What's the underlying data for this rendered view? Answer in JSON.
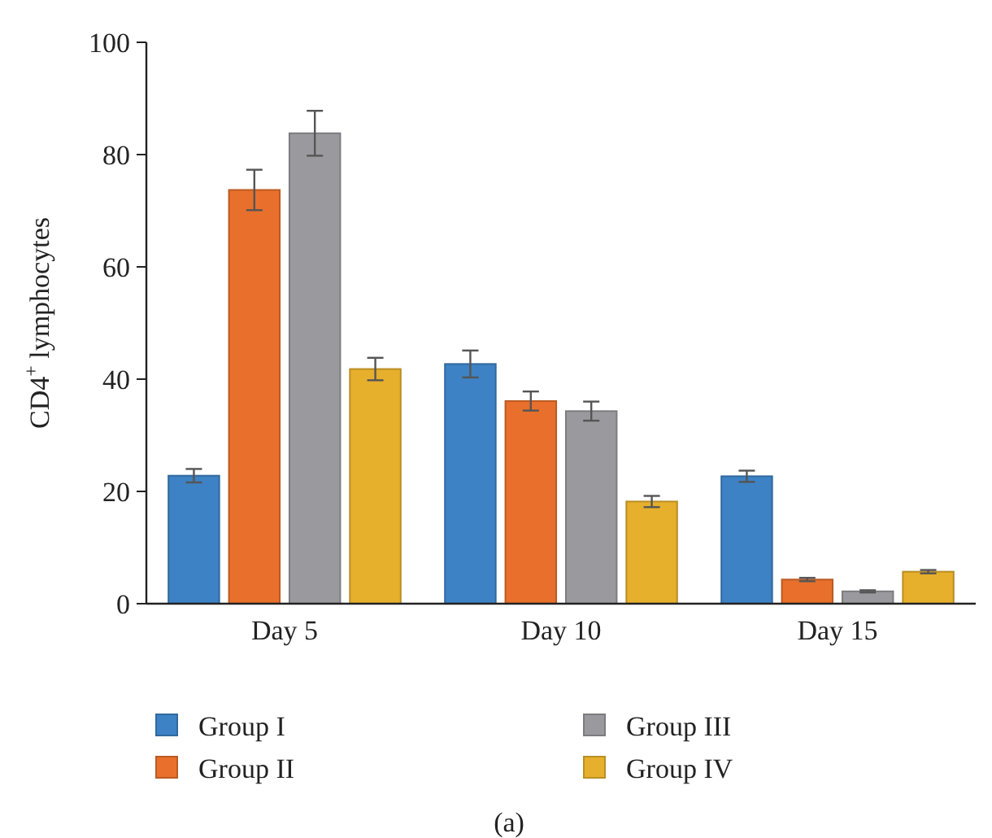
{
  "chart_data": {
    "type": "bar",
    "ylabel": "CD4$^{+}$ lymphocytes",
    "categories": [
      "Day 5",
      "Day 10",
      "Day 15"
    ],
    "series": [
      {
        "name": "Group I",
        "color": "#3d82c4",
        "values": [
          22.8,
          42.7,
          22.7
        ],
        "errors": [
          1.2,
          2.4,
          1
        ]
      },
      {
        "name": "Group II",
        "color": "#e8702c",
        "values": [
          73.7,
          36.1,
          4.3
        ],
        "errors": [
          3.6,
          1.7,
          0.3
        ]
      },
      {
        "name": "Group III",
        "color": "#9a9a9e",
        "values": [
          83.8,
          34.3,
          2.2
        ],
        "errors": [
          4,
          1.7,
          0.2
        ]
      },
      {
        "name": "Group IV",
        "color": "#e6b02c",
        "values": [
          41.8,
          18.2,
          5.7
        ],
        "errors": [
          2,
          1,
          0.3
        ]
      }
    ],
    "ylim": [
      0,
      100
    ],
    "yticks": [
      0,
      20,
      40,
      60,
      80,
      100
    ],
    "grid": false,
    "legend": "bottom",
    "annotations": [
      "(a)"
    ]
  }
}
